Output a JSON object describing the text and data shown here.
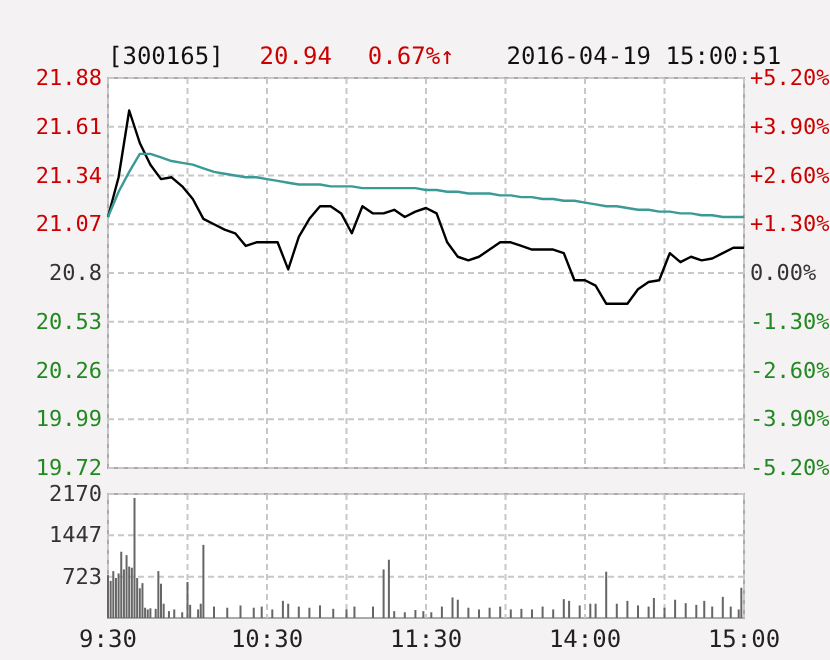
{
  "chart_data": [
    {
      "type": "line",
      "title": "[300165]",
      "annotations": [
        "20.94",
        "0.67%↑",
        "2016-04-19 15:00:51"
      ],
      "categories": [
        null,
        null,
        null,
        null,
        null,
        null,
        null,
        null,
        null,
        null,
        null,
        null,
        null,
        null,
        null,
        null,
        null,
        null,
        null,
        null,
        null,
        null,
        null,
        null,
        null,
        null,
        null,
        null,
        null,
        null,
        null,
        null,
        null,
        null,
        null,
        null,
        null,
        null,
        null,
        null,
        null,
        null,
        null,
        null,
        null,
        null,
        null,
        null,
        null,
        null,
        null,
        null,
        null,
        null,
        null,
        null,
        null,
        null,
        null,
        null,
        null
      ],
      "ylim": [
        19.72,
        21.88
      ],
      "yticks": [
        19.72,
        19.99,
        20.26,
        20.53,
        20.8,
        21.07,
        21.34,
        21.61,
        21.88
      ],
      "y2lim": [
        -5.2,
        5.2
      ],
      "y2ticks": [
        {
          "value": -5.2,
          "label": "-5.20%"
        },
        {
          "value": -3.9,
          "label": "-3.90%"
        },
        {
          "value": -2.6,
          "label": "-2.60%"
        },
        {
          "value": -1.3,
          "label": "-1.30%"
        },
        {
          "value": 0,
          "label": "0.00%"
        },
        {
          "value": 1.3,
          "label": "+1.30%"
        },
        {
          "value": 2.6,
          "label": "+2.60%"
        },
        {
          "value": 3.9,
          "label": "+3.90%"
        },
        {
          "value": 5.2,
          "label": "+5.20%"
        }
      ],
      "tick_labels": "y",
      "grid": true,
      "marker": "none",
      "line_style": "solid",
      "series": [
        {
          "color": "#000000",
          "values": [
            21.11,
            21.33,
            21.7,
            21.52,
            21.4,
            21.32,
            21.33,
            21.28,
            21.21,
            21.1,
            21.07,
            21.04,
            21.02,
            20.95,
            20.97,
            20.97,
            20.97,
            20.82,
            21.0,
            21.1,
            21.17,
            21.17,
            21.13,
            21.02,
            21.17,
            21.13,
            21.13,
            21.15,
            21.11,
            21.14,
            21.16,
            21.13,
            20.97,
            20.89,
            20.87,
            20.89,
            20.93,
            20.97,
            20.97,
            20.95,
            20.93,
            20.93,
            20.93,
            20.91,
            20.76,
            20.76,
            20.73,
            20.63,
            20.63,
            20.63,
            20.71,
            20.75,
            20.76,
            20.91,
            20.86,
            20.89,
            20.87,
            20.88,
            20.91,
            20.94,
            20.94
          ]
        },
        {
          "color": "#3a9a96",
          "values": [
            21.11,
            21.25,
            21.36,
            21.46,
            21.46,
            21.44,
            21.42,
            21.41,
            21.4,
            21.38,
            21.36,
            21.35,
            21.34,
            21.33,
            21.33,
            21.32,
            21.31,
            21.3,
            21.29,
            21.29,
            21.29,
            21.28,
            21.28,
            21.28,
            21.27,
            21.27,
            21.27,
            21.27,
            21.27,
            21.27,
            21.26,
            21.26,
            21.25,
            21.25,
            21.24,
            21.24,
            21.24,
            21.23,
            21.23,
            21.22,
            21.22,
            21.21,
            21.21,
            21.2,
            21.2,
            21.19,
            21.18,
            21.17,
            21.17,
            21.16,
            21.15,
            21.15,
            21.14,
            21.14,
            21.13,
            21.13,
            21.12,
            21.12,
            21.11,
            21.11,
            21.11
          ]
        }
      ]
    },
    {
      "type": "bar",
      "categories": [
        "9:30",
        null,
        null,
        null,
        null,
        null,
        null,
        null,
        null,
        null,
        null,
        null,
        null,
        null,
        null,
        null,
        null,
        null,
        null,
        null,
        null,
        null,
        null,
        null,
        null,
        null,
        null,
        null,
        null,
        null,
        null,
        null,
        null,
        null,
        null,
        null,
        null,
        null,
        null,
        null,
        null,
        null,
        null,
        null,
        null,
        null,
        null,
        null,
        null,
        null,
        null,
        null,
        null,
        null,
        null,
        null,
        null,
        null,
        null,
        null,
        "10:30",
        null,
        null,
        null,
        null,
        null,
        null,
        null,
        null,
        null,
        null,
        null,
        null,
        null,
        null,
        null,
        null,
        null,
        null,
        null,
        null,
        null,
        null,
        null,
        null,
        null,
        null,
        null,
        null,
        null,
        null,
        null,
        null,
        null,
        null,
        null,
        null,
        null,
        null,
        null,
        null,
        null,
        null,
        null,
        null,
        null,
        null,
        null,
        null,
        null,
        null,
        null,
        null,
        null,
        null,
        null,
        null,
        null,
        null,
        null,
        "11:30",
        null,
        null,
        null,
        null,
        null,
        null,
        null,
        null,
        null,
        null,
        null,
        null,
        null,
        null,
        null,
        null,
        null,
        null,
        null,
        null,
        null,
        null,
        null,
        null,
        null,
        null,
        null,
        null,
        null,
        null,
        null,
        null,
        null,
        null,
        null,
        null,
        null,
        null,
        null,
        null,
        null,
        null,
        null,
        null,
        null,
        null,
        null,
        null,
        null,
        null,
        null,
        null,
        null,
        null,
        null,
        null,
        null,
        null,
        null,
        "14:00",
        null,
        null,
        null,
        null,
        null,
        null,
        null,
        null,
        null,
        null,
        null,
        null,
        null,
        null,
        null,
        null,
        null,
        null,
        null,
        null,
        null,
        null,
        null,
        null,
        null,
        null,
        null,
        null,
        null,
        null,
        null,
        null,
        null,
        null,
        null,
        null,
        null,
        null,
        null,
        null,
        null,
        null,
        null,
        null,
        null,
        null,
        null,
        null,
        null,
        null,
        null,
        null,
        null,
        null,
        null,
        null,
        null,
        null,
        null,
        "15:00"
      ],
      "ylim": [
        0,
        2170
      ],
      "yticks": [
        723,
        1447,
        2170
      ],
      "grid": true,
      "color": "#666666",
      "values": [
        750,
        650,
        820,
        700,
        780,
        1160,
        850,
        1100,
        900,
        880,
        2100,
        700,
        520,
        610,
        180,
        150,
        170,
        null,
        160,
        820,
        600,
        250,
        null,
        120,
        null,
        150,
        null,
        null,
        100,
        null,
        630,
        230,
        null,
        null,
        150,
        250,
        1280,
        null,
        null,
        null,
        200,
        null,
        null,
        null,
        null,
        180,
        null,
        null,
        null,
        null,
        220,
        null,
        null,
        null,
        null,
        180,
        null,
        null,
        200,
        null,
        null,
        null,
        150,
        null,
        null,
        null,
        300,
        null,
        250,
        null,
        null,
        null,
        200,
        null,
        null,
        null,
        180,
        null,
        null,
        null,
        220,
        null,
        null,
        null,
        null,
        160,
        null,
        null,
        null,
        null,
        150,
        null,
        null,
        200,
        null,
        null,
        null,
        null,
        null,
        null,
        200,
        null,
        null,
        null,
        850,
        null,
        1020,
        null,
        120,
        null,
        null,
        null,
        100,
        null,
        null,
        null,
        140,
        null,
        null,
        120,
        null,
        null,
        100,
        null,
        null,
        null,
        200,
        null,
        null,
        null,
        360,
        null,
        320,
        null,
        null,
        null,
        180,
        null,
        null,
        null,
        150,
        null,
        null,
        null,
        180,
        null,
        null,
        null,
        200,
        null,
        null,
        null,
        150,
        null,
        null,
        null,
        160,
        null,
        null,
        null,
        150,
        null,
        null,
        null,
        200,
        null,
        null,
        null,
        150,
        null,
        null,
        null,
        330,
        null,
        300,
        null,
        null,
        null,
        220,
        null,
        null,
        null,
        250,
        null,
        250,
        null,
        null,
        null,
        810,
        null,
        null,
        null,
        250,
        null,
        null,
        null,
        300,
        null,
        null,
        null,
        220,
        null,
        null,
        null,
        200,
        null,
        350,
        null,
        null,
        null,
        180,
        null,
        null,
        null,
        320,
        null,
        null,
        null,
        260,
        null,
        null,
        null,
        230,
        null,
        null,
        300,
        null,
        null,
        200,
        null,
        null,
        null,
        370,
        null,
        null,
        200,
        null,
        null,
        150,
        530,
        null
      ]
    }
  ]
}
